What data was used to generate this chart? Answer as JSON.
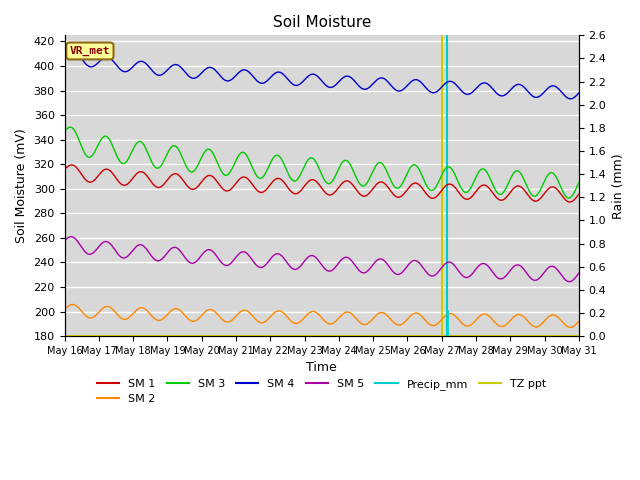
{
  "title": "Soil Moisture",
  "xlabel": "Time",
  "ylabel_left": "Soil Moisture (mV)",
  "ylabel_right": "Rain (mm)",
  "ylim_left": [
    180,
    425
  ],
  "ylim_right": [
    0.0,
    2.6
  ],
  "background_color": "#d8d8d8",
  "grid_color": "#ffffff",
  "annotation_label": "VR_met",
  "annotation_box_color": "#ffff99",
  "annotation_text_color": "#8b0000",
  "sm1_color": "#cc0000",
  "sm2_color": "#ff8800",
  "sm3_color": "#00cc00",
  "sm4_color": "#0000cc",
  "sm5_color": "#aa00aa",
  "precip_color": "#00cccc",
  "tzppt_color": "#cccc00",
  "tick_labels": [
    "May 16",
    "May 17",
    "May 18",
    "May 19",
    "May 20",
    "May 21",
    "May 22",
    "May 23",
    "May 24",
    "May 25",
    "May 26",
    "May 27",
    "May 28",
    "May 29",
    "May 30",
    "May 31"
  ],
  "yticks_left": [
    180,
    200,
    220,
    240,
    260,
    280,
    300,
    320,
    340,
    360,
    380,
    400,
    420
  ],
  "yticks_right": [
    0.0,
    0.2,
    0.4,
    0.6,
    0.8,
    1.0,
    1.2,
    1.4,
    1.6,
    1.8,
    2.0,
    2.2,
    2.4,
    2.6
  ]
}
